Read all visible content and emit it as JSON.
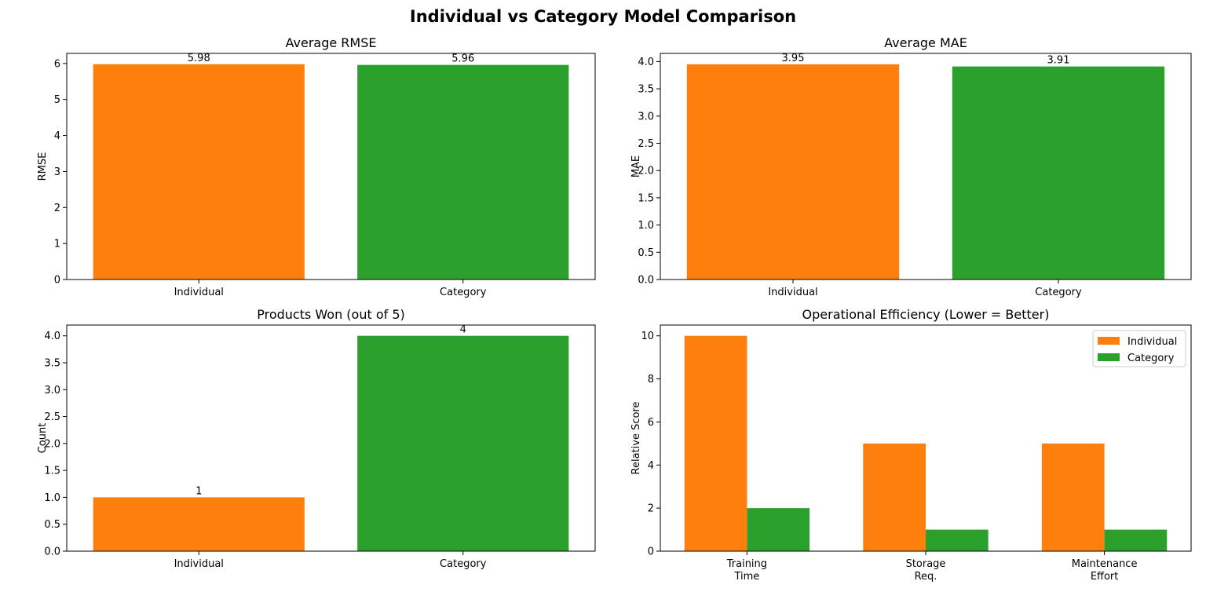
{
  "figure_title": "Individual vs Category Model Comparison",
  "colors": {
    "individual": "#ff7f0e",
    "category": "#2ca02c"
  },
  "chart_data": [
    {
      "type": "bar",
      "title": "Average RMSE",
      "ylabel": "RMSE",
      "xlabel": "",
      "categories": [
        "Individual",
        "Category"
      ],
      "values": [
        5.98,
        5.96
      ],
      "value_labels": [
        "5.98",
        "5.96"
      ],
      "ylim": [
        0,
        6.28
      ],
      "yticks": [
        0,
        1,
        2,
        3,
        4,
        5,
        6
      ],
      "ytick_labels": [
        "0",
        "1",
        "2",
        "3",
        "4",
        "5",
        "6"
      ],
      "grid": false
    },
    {
      "type": "bar",
      "title": "Average MAE",
      "ylabel": "MAE",
      "xlabel": "",
      "categories": [
        "Individual",
        "Category"
      ],
      "values": [
        3.95,
        3.91
      ],
      "value_labels": [
        "3.95",
        "3.91"
      ],
      "ylim": [
        0,
        4.15
      ],
      "yticks": [
        0,
        0.5,
        1,
        1.5,
        2,
        2.5,
        3,
        3.5,
        4
      ],
      "ytick_labels": [
        "0.0",
        "0.5",
        "1.0",
        "1.5",
        "2.0",
        "2.5",
        "3.0",
        "3.5",
        "4.0"
      ],
      "grid": false
    },
    {
      "type": "bar",
      "title": "Products Won (out of 5)",
      "ylabel": "Count",
      "xlabel": "",
      "categories": [
        "Individual",
        "Category"
      ],
      "values": [
        1,
        4
      ],
      "value_labels": [
        "1",
        "4"
      ],
      "ylim": [
        0,
        4.2
      ],
      "yticks": [
        0,
        0.5,
        1,
        1.5,
        2,
        2.5,
        3,
        3.5,
        4
      ],
      "ytick_labels": [
        "0.0",
        "0.5",
        "1.0",
        "1.5",
        "2.0",
        "2.5",
        "3.0",
        "3.5",
        "4.0"
      ],
      "grid": false
    },
    {
      "type": "bar",
      "title": "Operational Efficiency (Lower = Better)",
      "ylabel": "Relative Score",
      "xlabel": "",
      "categories": [
        [
          "Training",
          "Time"
        ],
        [
          "Storage",
          "Req."
        ],
        [
          "Maintenance",
          "Effort"
        ]
      ],
      "series": [
        {
          "name": "Individual",
          "values": [
            10,
            5,
            5
          ]
        },
        {
          "name": "Category",
          "values": [
            2,
            1,
            1
          ]
        }
      ],
      "ylim": [
        0,
        10.5
      ],
      "yticks": [
        0,
        2,
        4,
        6,
        8,
        10
      ],
      "ytick_labels": [
        "0",
        "2",
        "4",
        "6",
        "8",
        "10"
      ],
      "legend": "top-right",
      "grid": false
    }
  ]
}
